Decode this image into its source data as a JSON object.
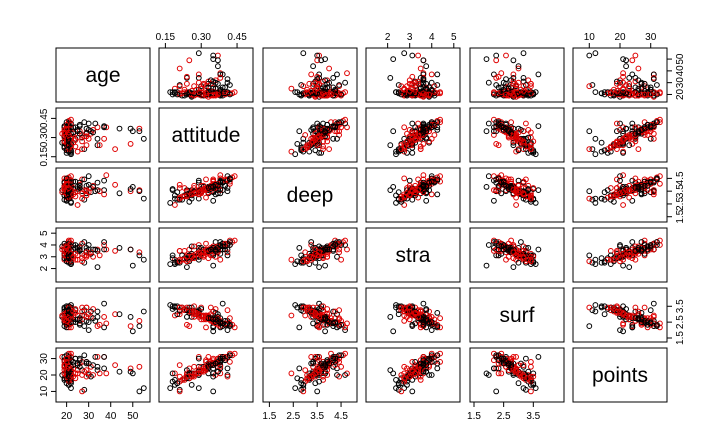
{
  "chart_data": {
    "type": "scatter",
    "variables": [
      {
        "name": "age",
        "label": "age",
        "range": [
          17,
          56
        ],
        "ticks": [
          "20",
          "30",
          "40",
          "50"
        ],
        "tick_values": [
          20,
          30,
          40,
          50
        ],
        "axis": "bottom"
      },
      {
        "name": "attitude",
        "label": "attitude",
        "range": [
          0.14,
          0.5
        ],
        "ticks": [
          "0.15",
          "0.30",
          "0.45"
        ],
        "tick_values": [
          0.15,
          0.3,
          0.45
        ],
        "axis": "top"
      },
      {
        "name": "deep",
        "label": "deep",
        "range": [
          1.4,
          5.0
        ],
        "ticks": [
          "1.5",
          "2.5",
          "3.5",
          "4.5"
        ],
        "tick_values": [
          1.5,
          2.5,
          3.5,
          4.5
        ],
        "axis": "bottom"
      },
      {
        "name": "stra",
        "label": "stra",
        "range": [
          1.2,
          5.1
        ],
        "ticks": [
          "2",
          "3",
          "4",
          "5"
        ],
        "tick_values": [
          2,
          3,
          4,
          5
        ],
        "axis": "top"
      },
      {
        "name": "surf",
        "label": "surf",
        "range": [
          1.5,
          4.4
        ],
        "ticks": [
          "1.5",
          "2.5",
          "3.5"
        ],
        "tick_values": [
          1.5,
          2.5,
          3.5
        ],
        "axis": "bottom"
      },
      {
        "name": "points",
        "label": "points",
        "range": [
          6,
          34
        ],
        "ticks": [
          "10",
          "20",
          "30"
        ],
        "tick_values": [
          10,
          20,
          30
        ],
        "axis": "top"
      }
    ],
    "group_colors": [
      "#000000",
      "#df0000"
    ],
    "points": [
      [
        53,
        0.37,
        3.58,
        3.38,
        2.58,
        25,
        1
      ],
      [
        55,
        0.29,
        2.92,
        2.75,
        3.17,
        12,
        0
      ],
      [
        49,
        0.25,
        3.5,
        3.62,
        2.25,
        24,
        1
      ],
      [
        53,
        0.35,
        3.5,
        3.12,
        2.25,
        10,
        0
      ],
      [
        49,
        0.37,
        3.67,
        3.62,
        2.83,
        22,
        0
      ],
      [
        38,
        0.38,
        4.75,
        3.62,
        2.42,
        21,
        1
      ],
      [
        50,
        0.35,
        3.83,
        2.25,
        1.92,
        21,
        0
      ],
      [
        37,
        0.29,
        3.25,
        4.0,
        2.83,
        31,
        1
      ],
      [
        37,
        0.38,
        4.33,
        4.25,
        2.17,
        24,
        0
      ],
      [
        42,
        0.21,
        4.0,
        3.5,
        3.0,
        26,
        1
      ],
      [
        37,
        0.39,
        3.58,
        3.62,
        3.67,
        31,
        0
      ],
      [
        34,
        0.38,
        3.58,
        3.62,
        2.25,
        31,
        1
      ],
      [
        34,
        0.24,
        3.58,
        2.12,
        2.83,
        23,
        0
      ],
      [
        34,
        0.29,
        4.17,
        3.5,
        3.17,
        25,
        0
      ],
      [
        35,
        0.24,
        3.5,
        3.12,
        2.33,
        21,
        1
      ],
      [
        33,
        0.41,
        3.5,
        3.62,
        2.58,
        31,
        0
      ],
      [
        32,
        0.36,
        3.92,
        3.0,
        3.33,
        20,
        1
      ],
      [
        44,
        0.37,
        3.33,
        3.75,
        3.0,
        22,
        0
      ],
      [
        29,
        0.34,
        3.5,
        3.12,
        3.42,
        28,
        1
      ],
      [
        30,
        0.41,
        4.67,
        4.0,
        2.0,
        20,
        0
      ],
      [
        27,
        0.32,
        4.42,
        4.12,
        2.67,
        28,
        1
      ],
      [
        29,
        0.33,
        3.33,
        3.5,
        2.83,
        27,
        0
      ],
      [
        31,
        0.35,
        3.42,
        3.25,
        3.17,
        19,
        0
      ],
      [
        25,
        0.19,
        2.42,
        2.75,
        2.92,
        21,
        1
      ],
      [
        24,
        0.29,
        3.42,
        3.75,
        3.25,
        30,
        0
      ],
      [
        21,
        0.41,
        4.42,
        3.38,
        3.25,
        19,
        1
      ],
      [
        20,
        0.33,
        3.83,
        3.5,
        2.83,
        21,
        0
      ],
      [
        23,
        0.33,
        3.75,
        2.88,
        2.83,
        24,
        1
      ],
      [
        22,
        0.19,
        3.17,
        2.38,
        3.42,
        17,
        0
      ],
      [
        21,
        0.42,
        4.25,
        4.38,
        2.75,
        28,
        1
      ],
      [
        20,
        0.38,
        3.67,
        3.62,
        2.75,
        26,
        0
      ],
      [
        22,
        0.3,
        3.33,
        3.25,
        3.42,
        25,
        1
      ],
      [
        21,
        0.41,
        3.75,
        3.12,
        2.33,
        24,
        0
      ],
      [
        22,
        0.23,
        3.75,
        3.5,
        3.25,
        17,
        1
      ],
      [
        22,
        0.25,
        2.67,
        2.62,
        3.42,
        18,
        0
      ],
      [
        19,
        0.35,
        4.25,
        3.88,
        3.17,
        26,
        1
      ],
      [
        22,
        0.29,
        4.33,
        3.0,
        3.0,
        20,
        0
      ],
      [
        21,
        0.32,
        3.58,
        3.5,
        2.17,
        29,
        1
      ],
      [
        21,
        0.36,
        3.25,
        4.25,
        3.08,
        27,
        0
      ],
      [
        19,
        0.3,
        3.92,
        3.5,
        2.67,
        23,
        1
      ],
      [
        18,
        0.26,
        3.58,
        3.88,
        2.83,
        20,
        0
      ],
      [
        20,
        0.34,
        3.92,
        3.25,
        3.0,
        26,
        1
      ],
      [
        21,
        0.37,
        3.83,
        3.62,
        2.67,
        22,
        0
      ],
      [
        19,
        0.38,
        4.5,
        2.75,
        2.58,
        25,
        1
      ],
      [
        20,
        0.18,
        3.67,
        3.12,
        3.5,
        21,
        0
      ],
      [
        22,
        0.31,
        3.92,
        3.0,
        2.67,
        23,
        1
      ],
      [
        21,
        0.26,
        2.92,
        2.88,
        3.42,
        14,
        0
      ],
      [
        18,
        0.33,
        3.42,
        3.62,
        2.92,
        31,
        1
      ],
      [
        20,
        0.35,
        2.75,
        3.75,
        2.17,
        24,
        0
      ],
      [
        20,
        0.21,
        3.75,
        3.5,
        3.17,
        19,
        1
      ],
      [
        21,
        0.38,
        3.33,
        3.25,
        2.42,
        28,
        0
      ],
      [
        19,
        0.27,
        3.92,
        3.88,
        2.83,
        25,
        1
      ],
      [
        20,
        0.3,
        3.67,
        3.75,
        3.33,
        22,
        0
      ],
      [
        21,
        0.42,
        4.08,
        4.0,
        2.42,
        33,
        1
      ],
      [
        22,
        0.2,
        3.42,
        2.5,
        3.0,
        15,
        0
      ],
      [
        20,
        0.35,
        4.33,
        3.88,
        2.5,
        29,
        1
      ],
      [
        19,
        0.26,
        3.17,
        3.25,
        3.17,
        21,
        0
      ],
      [
        21,
        0.37,
        3.83,
        3.5,
        2.33,
        27,
        1
      ],
      [
        20,
        0.29,
        3.5,
        3.0,
        3.08,
        20,
        0
      ],
      [
        21,
        0.35,
        4.42,
        3.62,
        2.75,
        30,
        1
      ],
      [
        22,
        0.18,
        3.58,
        2.88,
        3.33,
        16,
        0
      ],
      [
        20,
        0.32,
        3.0,
        3.38,
        2.92,
        23,
        1
      ],
      [
        19,
        0.39,
        4.17,
        4.12,
        2.25,
        31,
        0
      ],
      [
        21,
        0.27,
        3.75,
        3.0,
        3.5,
        19,
        1
      ],
      [
        23,
        0.34,
        3.67,
        3.62,
        2.67,
        26,
        0
      ],
      [
        20,
        0.25,
        3.25,
        2.75,
        3.17,
        18,
        1
      ],
      [
        21,
        0.4,
        3.92,
        3.88,
        2.58,
        29,
        0
      ],
      [
        22,
        0.3,
        3.42,
        3.25,
        2.92,
        22,
        1
      ],
      [
        19,
        0.22,
        2.83,
        3.12,
        3.42,
        17,
        0
      ],
      [
        20,
        0.36,
        4.0,
        3.5,
        2.42,
        27,
        1
      ],
      [
        21,
        0.33,
        3.58,
        3.38,
        2.75,
        24,
        0
      ],
      [
        22,
        0.24,
        3.08,
        2.62,
        3.25,
        20,
        1
      ],
      [
        23,
        0.38,
        4.25,
        4.0,
        2.5,
        28,
        0
      ],
      [
        20,
        0.28,
        3.33,
        3.0,
        3.0,
        21,
        1
      ],
      [
        19,
        0.31,
        3.83,
        3.62,
        2.83,
        25,
        0
      ],
      [
        21,
        0.43,
        4.58,
        4.25,
        2.33,
        32,
        1
      ],
      [
        22,
        0.17,
        2.58,
        2.38,
        3.58,
        12,
        0
      ],
      [
        20,
        0.34,
        3.75,
        3.5,
        2.67,
        26,
        1
      ],
      [
        21,
        0.27,
        3.5,
        3.12,
        3.17,
        21,
        0
      ],
      [
        20,
        0.37,
        4.08,
        3.88,
        2.58,
        30,
        1
      ],
      [
        19,
        0.23,
        3.17,
        2.88,
        3.33,
        18,
        0
      ],
      [
        21,
        0.32,
        3.67,
        3.25,
        2.92,
        24,
        1
      ],
      [
        22,
        0.41,
        4.33,
        4.12,
        2.42,
        31,
        0
      ],
      [
        20,
        0.26,
        3.42,
        3.0,
        3.08,
        19,
        1
      ],
      [
        21,
        0.35,
        3.92,
        3.75,
        2.75,
        27,
        0
      ],
      [
        20,
        0.29,
        3.58,
        3.38,
        3.0,
        22,
        1
      ],
      [
        19,
        0.38,
        4.17,
        3.62,
        2.5,
        29,
        0
      ],
      [
        21,
        0.21,
        3.0,
        2.75,
        3.42,
        16,
        1
      ],
      [
        22,
        0.33,
        3.83,
        3.5,
        2.83,
        25,
        0
      ],
      [
        20,
        0.4,
        4.42,
        4.0,
        2.33,
        30,
        1
      ],
      [
        21,
        0.25,
        3.25,
        3.12,
        3.25,
        20,
        0
      ],
      [
        19,
        0.36,
        3.75,
        3.62,
        2.67,
        28,
        1
      ],
      [
        20,
        0.3,
        3.5,
        3.25,
        2.92,
        23,
        0
      ],
      [
        22,
        0.44,
        4.67,
        4.38,
        2.17,
        33,
        1
      ],
      [
        21,
        0.19,
        2.92,
        2.5,
        3.5,
        14,
        0
      ],
      [
        20,
        0.34,
        3.92,
        3.75,
        2.58,
        27,
        1
      ],
      [
        21,
        0.28,
        3.42,
        3.0,
        3.17,
        21,
        0
      ],
      [
        22,
        0.37,
        4.08,
        3.88,
        2.75,
        29,
        1
      ],
      [
        20,
        0.24,
        3.17,
        2.88,
        3.25,
        18,
        0
      ],
      [
        19,
        0.32,
        3.67,
        3.5,
        2.83,
        25,
        1
      ],
      [
        21,
        0.39,
        4.25,
        4.12,
        2.42,
        31,
        0
      ],
      [
        20,
        0.26,
        3.33,
        3.12,
        3.08,
        20,
        1
      ],
      [
        21,
        0.35,
        3.83,
        3.62,
        2.67,
        27,
        0
      ],
      [
        22,
        0.29,
        3.58,
        3.25,
        2.92,
        23,
        1
      ],
      [
        20,
        0.42,
        4.5,
        4.0,
        2.33,
        32,
        0
      ],
      [
        21,
        0.22,
        3.08,
        2.75,
        3.42,
        17,
        1
      ],
      [
        20,
        0.33,
        3.75,
        3.5,
        2.75,
        26,
        0
      ],
      [
        19,
        0.27,
        3.42,
        3.12,
        3.0,
        21,
        1
      ],
      [
        22,
        0.38,
        4.17,
        3.88,
        2.5,
        29,
        0
      ],
      [
        20,
        0.31,
        3.67,
        3.38,
        2.83,
        24,
        1
      ],
      [
        21,
        0.24,
        3.25,
        2.88,
        3.25,
        19,
        0
      ],
      [
        20,
        0.36,
        4.0,
        3.75,
        2.58,
        28,
        1
      ],
      [
        21,
        0.29,
        3.5,
        3.25,
        3.0,
        22,
        0
      ],
      [
        22,
        0.4,
        4.33,
        4.12,
        2.42,
        31,
        1
      ],
      [
        20,
        0.2,
        2.83,
        2.62,
        3.5,
        15,
        0
      ],
      [
        19,
        0.34,
        3.83,
        3.5,
        2.67,
        26,
        1
      ],
      [
        21,
        0.27,
        3.42,
        3.0,
        3.17,
        20,
        0
      ],
      [
        20,
        0.37,
        4.08,
        3.88,
        2.58,
        30,
        1
      ],
      [
        22,
        0.25,
        3.33,
        3.12,
        3.08,
        21,
        0
      ],
      [
        21,
        0.32,
        3.75,
        3.62,
        2.75,
        25,
        1
      ],
      [
        27,
        0.3,
        3.5,
        3.25,
        2.92,
        23,
        0
      ],
      [
        26,
        0.35,
        4.0,
        3.75,
        2.58,
        27,
        1
      ],
      [
        28,
        0.21,
        2.83,
        2.5,
        3.25,
        11,
        0
      ],
      [
        31,
        0.33,
        3.75,
        3.38,
        2.83,
        25,
        1
      ],
      [
        26,
        0.4,
        3.92,
        3.62,
        2.33,
        29,
        0
      ],
      [
        29,
        0.24,
        3.17,
        3.0,
        3.42,
        19,
        1
      ],
      [
        24,
        0.38,
        4.25,
        4.0,
        2.5,
        30,
        0
      ],
      [
        28,
        0.31,
        3.58,
        3.12,
        2.92,
        22,
        1
      ],
      [
        25,
        0.36,
        3.67,
        3.5,
        2.67,
        27,
        0
      ],
      [
        27,
        0.27,
        3.33,
        2.88,
        3.17,
        20,
        1
      ],
      [
        32,
        0.34,
        3.83,
        3.62,
        2.75,
        26,
        0
      ],
      [
        30,
        0.29,
        3.42,
        3.25,
        3.0,
        21,
        1
      ],
      [
        26,
        0.39,
        4.17,
        3.88,
        2.42,
        30,
        0
      ],
      [
        24,
        0.23,
        3.08,
        2.75,
        3.33,
        18,
        1
      ],
      [
        29,
        0.37,
        3.92,
        3.75,
        2.58,
        28,
        0
      ],
      [
        25,
        0.3,
        3.5,
        3.12,
        2.92,
        23,
        1
      ],
      [
        28,
        0.42,
        4.42,
        4.25,
        2.25,
        32,
        0
      ],
      [
        23,
        0.26,
        3.25,
        3.0,
        3.17,
        19,
        1
      ],
      [
        26,
        0.33,
        3.75,
        3.5,
        2.75,
        25,
        0
      ],
      [
        27,
        0.21,
        2.92,
        2.62,
        3.42,
        10,
        1
      ],
      [
        30,
        0.36,
        4.0,
        3.62,
        2.5,
        27,
        0
      ],
      [
        24,
        0.28,
        3.42,
        3.25,
        3.08,
        21,
        1
      ],
      [
        25,
        0.35,
        3.83,
        3.75,
        2.67,
        26,
        0
      ],
      [
        29,
        0.31,
        3.58,
        3.38,
        2.83,
        23,
        1
      ]
    ]
  }
}
